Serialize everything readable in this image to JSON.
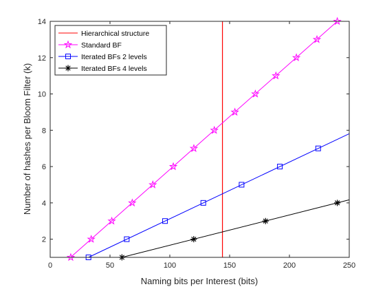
{
  "chart_data": {
    "type": "line",
    "xlabel": "Naming bits per Interest (bits)",
    "ylabel": "Number of hashes per Bloom Filter (k)",
    "xlim": [
      0,
      250
    ],
    "ylim": [
      1,
      14
    ],
    "x_ticks": [
      0,
      50,
      100,
      150,
      200,
      250
    ],
    "y_ticks": [
      2,
      4,
      6,
      8,
      10,
      12,
      14
    ],
    "grid": false,
    "legend_position": "top-left",
    "vertical_lines": [
      {
        "name": "Hierarchical structure",
        "x": 144,
        "color": "#ff0000"
      }
    ],
    "series": [
      {
        "name": "Standard BF",
        "color": "#ff00ff",
        "marker": "star",
        "line_x": [
          17,
          240
        ],
        "line_y": [
          1,
          14
        ],
        "points": [
          [
            17.2,
            1
          ],
          [
            34.3,
            2
          ],
          [
            51.5,
            3
          ],
          [
            68.6,
            4
          ],
          [
            85.8,
            5
          ],
          [
            102.9,
            6
          ],
          [
            120.1,
            7
          ],
          [
            137.2,
            8
          ],
          [
            154.4,
            9
          ],
          [
            171.5,
            10
          ],
          [
            188.7,
            11
          ],
          [
            205.8,
            12
          ],
          [
            223,
            13
          ],
          [
            240,
            14
          ]
        ]
      },
      {
        "name": "Iterated BFs 2 levels",
        "color": "#0000ff",
        "marker": "square",
        "line_x": [
          32,
          250
        ],
        "line_y": [
          1,
          7.81
        ],
        "points": [
          [
            32,
            1
          ],
          [
            64,
            2
          ],
          [
            96,
            3
          ],
          [
            128,
            4
          ],
          [
            160,
            5
          ],
          [
            192,
            6
          ],
          [
            224,
            7
          ]
        ]
      },
      {
        "name": "Iterated BFs 4 levels",
        "color": "#000000",
        "marker": "asterisk",
        "line_x": [
          60,
          250
        ],
        "line_y": [
          1,
          4.17
        ],
        "points": [
          [
            60,
            1
          ],
          [
            120,
            2
          ],
          [
            180,
            3
          ],
          [
            240,
            4
          ]
        ]
      }
    ]
  }
}
